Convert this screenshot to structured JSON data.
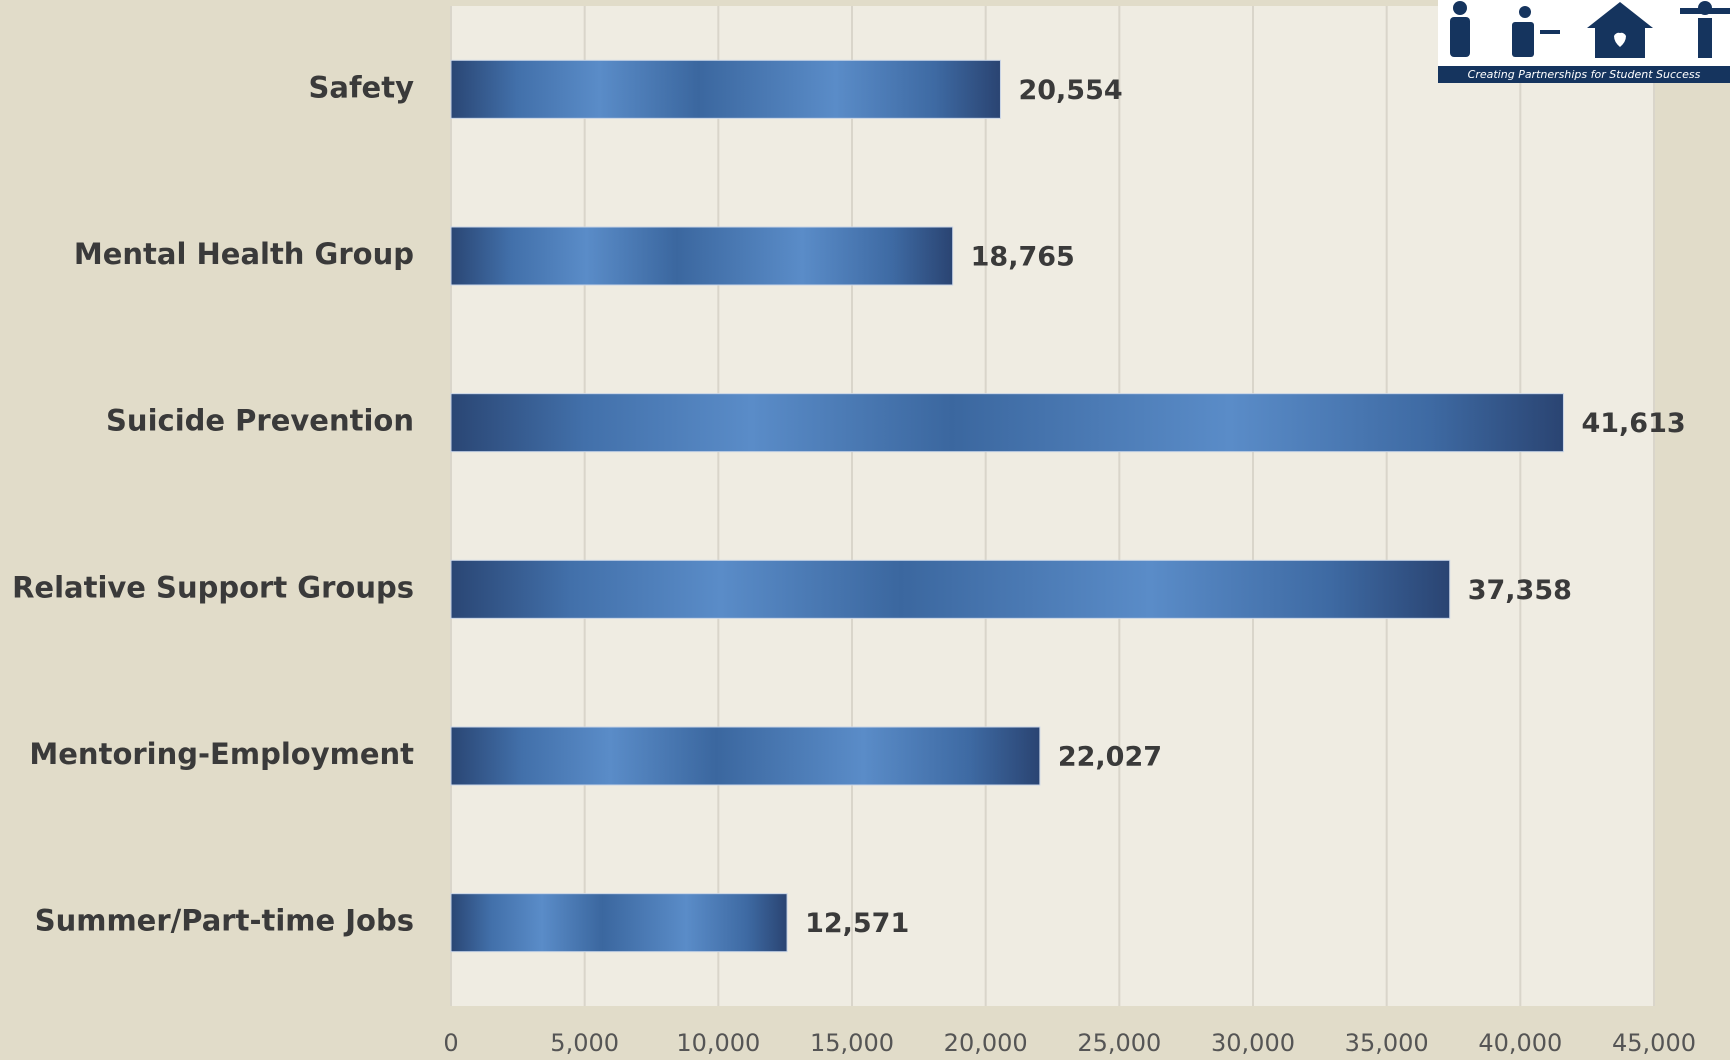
{
  "chart_data": {
    "type": "bar",
    "orientation": "horizontal",
    "categories": [
      "Safety",
      "Mental Health Group",
      "Suicide Prevention",
      "Relative Support Groups",
      "Mentoring-Employment",
      "Summer/Part-time Jobs"
    ],
    "values": [
      20554,
      18765,
      41613,
      37358,
      22027,
      12571
    ],
    "value_labels": [
      "20,554",
      "18,765",
      "41,613",
      "37,358",
      "22,027",
      "12,571"
    ],
    "color": "#4a78b4",
    "xlim": [
      0,
      45000
    ],
    "xticks": [
      0,
      {
        "value": 5000,
        "label": "5,000"
      },
      {
        "value": 10000,
        "label": "10,000"
      },
      {
        "value": 15000,
        "label": "15,000"
      },
      {
        "value": 20000,
        "label": "20,000"
      },
      {
        "value": 25000,
        "label": "25,000"
      },
      {
        "value": 30000,
        "label": "30,000"
      },
      {
        "value": 35000,
        "label": "35,000"
      },
      {
        "value": 40000,
        "label": "40,000"
      },
      {
        "value": 45000,
        "label": "45,000"
      }
    ],
    "grid": true,
    "logo_tagline": "Creating Partnerships for Student Success"
  }
}
